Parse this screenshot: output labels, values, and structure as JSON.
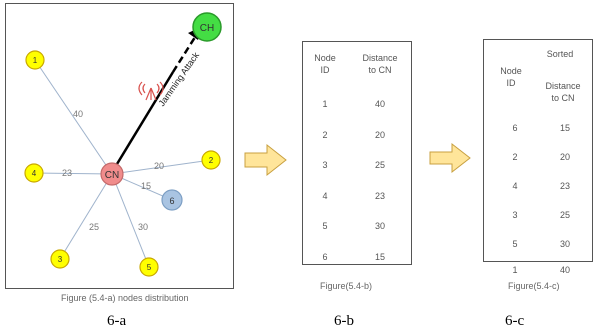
{
  "network": {
    "center_label": "CN",
    "head_label": "CH",
    "attack_label": "Jamming Attack",
    "nodes": [
      {
        "id": "1",
        "distance": "40"
      },
      {
        "id": "2",
        "distance": "20"
      },
      {
        "id": "3",
        "distance": "25"
      },
      {
        "id": "4",
        "distance": "23"
      },
      {
        "id": "5",
        "distance": "30"
      },
      {
        "id": "6",
        "distance": "15"
      }
    ],
    "caption": "Figure (5.4-a) nodes distribution"
  },
  "table_b": {
    "header_node": "Node\nID",
    "header_distance": "Distance\nto CN",
    "rows": [
      {
        "id": "1",
        "distance": "40"
      },
      {
        "id": "2",
        "distance": "20"
      },
      {
        "id": "3",
        "distance": "25"
      },
      {
        "id": "4",
        "distance": "23"
      },
      {
        "id": "5",
        "distance": "30"
      },
      {
        "id": "6",
        "distance": "15"
      }
    ],
    "caption": "Figure(5.4-b)"
  },
  "table_c": {
    "sorted_label": "Sorted",
    "header_node": "Node\nID",
    "header_distance": "Distance\nto CN",
    "rows": [
      {
        "id": "6",
        "distance": "15"
      },
      {
        "id": "2",
        "distance": "20"
      },
      {
        "id": "4",
        "distance": "23"
      },
      {
        "id": "3",
        "distance": "25"
      },
      {
        "id": "5",
        "distance": "30"
      }
    ],
    "overflow_row": {
      "id": "1",
      "distance": "40"
    },
    "caption": "Figure(5.4-c)"
  },
  "subfigure_labels": [
    "6-a",
    "6-b",
    "6-c"
  ],
  "colors": {
    "node_fill": "#ffff00",
    "node_stroke": "#c9a800",
    "center_fill": "#f08c8c",
    "head_fill": "#44dd44",
    "node6_fill": "#a9c4e2",
    "link": "#9fb3cc",
    "arrow_fill": "#ffe59a",
    "arrow_stroke": "#c8a040"
  }
}
